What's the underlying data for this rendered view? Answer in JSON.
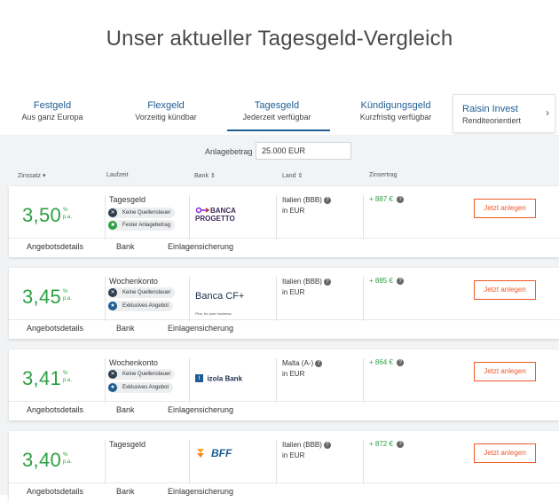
{
  "page": {
    "title": "Unser aktueller Tagesgeld-Vergleich"
  },
  "tabs": [
    {
      "title": "Festgeld",
      "subtitle": "Aus ganz Europa"
    },
    {
      "title": "Flexgeld",
      "subtitle": "Vorzeitig kündbar"
    },
    {
      "title": "Tagesgeld",
      "subtitle": "Jederzeit verfügbar"
    },
    {
      "title": "Kündigungsgeld",
      "subtitle": "Kurzfristig verfügbar"
    }
  ],
  "raisin": {
    "title": "Raisin Invest",
    "subtitle": "Renditeorientiert",
    "chevron": "›"
  },
  "amount": {
    "label": "Anlagebetrag",
    "value": "25.000 EUR"
  },
  "columns": {
    "rate": "Zinssatz",
    "term": "Laufzeit",
    "bank": "Bank",
    "country": "Land",
    "interest": "Zinsertrag",
    "rate_sort": "▾",
    "bank_sort": "⇕",
    "country_sort": "⇕"
  },
  "rate_unit": {
    "pct": "%",
    "pa": "p.a."
  },
  "footer_tabs": {
    "details": "Angebotsdetails",
    "bank": "Bank",
    "deposit": "Einlagensicherung"
  },
  "cta_label": "Jetzt anlegen",
  "offers": [
    {
      "rate": "3,50",
      "product": "Tagesgeld",
      "badges": [
        "Keine Quellensteuer",
        "Fester Anlagebetrag"
      ],
      "bank": "BANCA PROGETTO",
      "country": "Italien (BBB)",
      "currency": "in EUR",
      "interest": "+ 887 €"
    },
    {
      "rate": "3,45",
      "product": "Wochenkonto",
      "badges": [
        "Keine Quellensteuer",
        "Exklusives Angebot"
      ],
      "bank": "Banca CF+",
      "bank_tagline": "Plus, for your business.",
      "country": "Italien (BBB)",
      "currency": "in EUR",
      "interest": "+ 885 €"
    },
    {
      "rate": "3,41",
      "product": "Wochenkonto",
      "badges": [
        "Keine Quellensteuer",
        "Exklusives Angebot"
      ],
      "bank": "izola Bank",
      "country": "Malta (A-)",
      "currency": "in EUR",
      "interest": "+ 864 €"
    },
    {
      "rate": "3,40",
      "product": "Tagesgeld",
      "badges": [],
      "bank": "BFF",
      "country": "Italien (BBB)",
      "currency": "in EUR",
      "interest": "+ 872 €"
    }
  ],
  "colors": {
    "accent": "#1e5c92",
    "rate_green": "#2ea043",
    "cta_orange": "#f05a28"
  },
  "icons": {
    "info": "info-icon",
    "chevron": "chevron-right-icon"
  }
}
